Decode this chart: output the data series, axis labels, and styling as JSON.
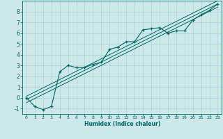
{
  "xlabel": "Humidex (Indice chaleur)",
  "xlim": [
    -0.5,
    23.5
  ],
  "ylim": [
    -1.5,
    9.0
  ],
  "xticks": [
    0,
    1,
    2,
    3,
    4,
    5,
    6,
    7,
    8,
    9,
    10,
    11,
    12,
    13,
    14,
    15,
    16,
    17,
    18,
    19,
    20,
    21,
    22,
    23
  ],
  "yticks": [
    -1,
    0,
    1,
    2,
    3,
    4,
    5,
    6,
    7,
    8
  ],
  "bg_color": "#cce8e8",
  "line_color": "#006666",
  "grid_color": "#aad4d4",
  "scatter_x": [
    0,
    1,
    2,
    3,
    4,
    5,
    6,
    7,
    8,
    9,
    10,
    11,
    12,
    13,
    14,
    15,
    16,
    17,
    18,
    19,
    20,
    21,
    22,
    23
  ],
  "scatter_y": [
    0.0,
    -0.8,
    -1.1,
    -0.8,
    2.4,
    3.0,
    2.8,
    2.8,
    3.1,
    3.3,
    4.5,
    4.7,
    5.2,
    5.2,
    6.3,
    6.4,
    6.5,
    6.0,
    6.2,
    6.2,
    7.2,
    7.7,
    8.1,
    8.7
  ],
  "line1_y_start": -0.15,
  "line1_y_end": 8.7,
  "line2_y_start": -0.45,
  "line2_y_end": 8.4,
  "line3_y_start": 0.15,
  "line3_y_end": 9.0
}
